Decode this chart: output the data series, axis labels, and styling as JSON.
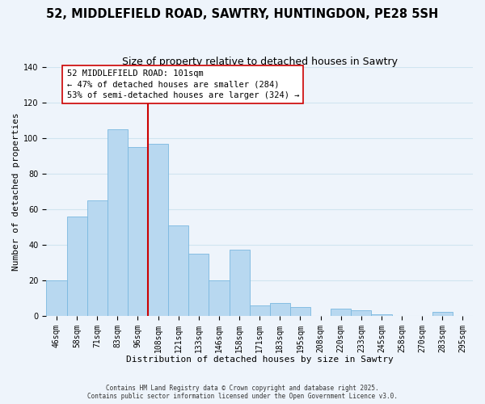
{
  "title": "52, MIDDLEFIELD ROAD, SAWTRY, HUNTINGDON, PE28 5SH",
  "subtitle": "Size of property relative to detached houses in Sawtry",
  "xlabel": "Distribution of detached houses by size in Sawtry",
  "ylabel": "Number of detached properties",
  "bar_labels": [
    "46sqm",
    "58sqm",
    "71sqm",
    "83sqm",
    "96sqm",
    "108sqm",
    "121sqm",
    "133sqm",
    "146sqm",
    "158sqm",
    "171sqm",
    "183sqm",
    "195sqm",
    "208sqm",
    "220sqm",
    "233sqm",
    "245sqm",
    "258sqm",
    "270sqm",
    "283sqm",
    "295sqm"
  ],
  "bar_values": [
    20,
    56,
    65,
    105,
    95,
    97,
    51,
    35,
    20,
    37,
    6,
    7,
    5,
    0,
    4,
    3,
    1,
    0,
    0,
    2,
    0
  ],
  "bar_color": "#b8d8f0",
  "bar_edge_color": "#7ab8e0",
  "grid_color": "#d0e4f0",
  "background_color": "#eef4fb",
  "vline_x": 4.5,
  "vline_color": "#cc0000",
  "annotation_line1": "52 MIDDLEFIELD ROAD: 101sqm",
  "annotation_line2": "← 47% of detached houses are smaller (284)",
  "annotation_line3": "53% of semi-detached houses are larger (324) →",
  "annotation_box_color": "#ffffff",
  "annotation_box_edge": "#cc0000",
  "ylim": [
    0,
    140
  ],
  "yticks": [
    0,
    20,
    40,
    60,
    80,
    100,
    120,
    140
  ],
  "footer_line1": "Contains HM Land Registry data © Crown copyright and database right 2025.",
  "footer_line2": "Contains public sector information licensed under the Open Government Licence v3.0.",
  "title_fontsize": 10.5,
  "subtitle_fontsize": 9,
  "axis_label_fontsize": 8,
  "tick_fontsize": 7,
  "annotation_fontsize": 7.5
}
